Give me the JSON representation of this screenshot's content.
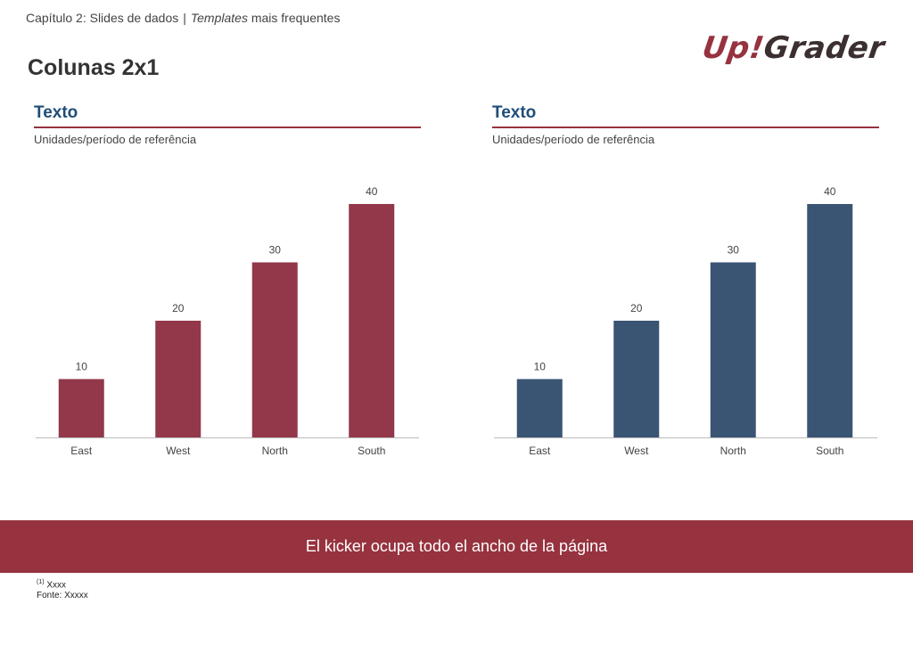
{
  "header": {
    "breadcrumb_chapter": "Capítulo 2: Slides de dados",
    "breadcrumb_separator": "|",
    "breadcrumb_italic": "Templates",
    "breadcrumb_rest": "mais frequentes",
    "page_title": "Colunas 2x1"
  },
  "logo": {
    "part1": "Up",
    "part2": "!",
    "part3": "Grader"
  },
  "colors": {
    "accent": "#97323f",
    "navy": "#1f4e79",
    "bar_red": "#93374a",
    "bar_blue": "#3a5573",
    "axis": "#bbbbbb"
  },
  "panels": [
    {
      "title": "Texto",
      "subtitle": "Unidades/período de referência"
    },
    {
      "title": "Texto",
      "subtitle": "Unidades/período de referência"
    }
  ],
  "chart_data": [
    {
      "type": "bar",
      "categories": [
        "East",
        "West",
        "North",
        "South"
      ],
      "values": [
        10,
        20,
        30,
        40
      ],
      "color": "#93374a",
      "ylim": [
        0,
        40
      ],
      "data_labels": true,
      "grid": false,
      "title": "Texto",
      "subtitle": "Unidades/período de referência"
    },
    {
      "type": "bar",
      "categories": [
        "East",
        "West",
        "North",
        "South"
      ],
      "values": [
        10,
        20,
        30,
        40
      ],
      "color": "#3a5573",
      "ylim": [
        0,
        40
      ],
      "data_labels": true,
      "grid": false,
      "title": "Texto",
      "subtitle": "Unidades/período de referência"
    }
  ],
  "kicker": "El kicker ocupa todo el ancho de la página",
  "footnote": {
    "marker": "(1)",
    "text": "Xxxx",
    "source": "Fonte: Xxxxx"
  }
}
